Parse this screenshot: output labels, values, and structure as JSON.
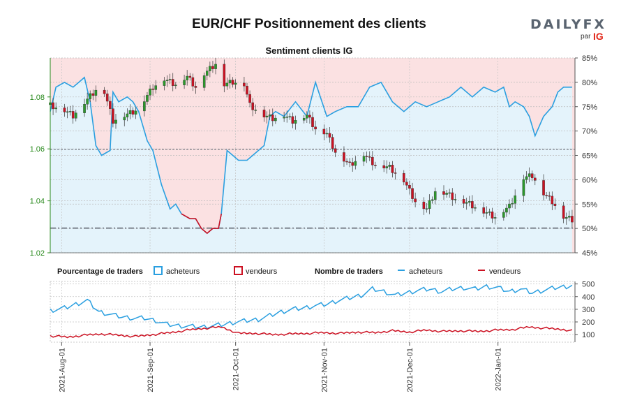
{
  "header": {
    "title": "EUR/CHF Positionnement des clients",
    "subtitle": "Sentiment clients IG",
    "logo_word": "DAILYFX",
    "logo_by": "par",
    "logo_ig": "IG"
  },
  "legend": {
    "pct_title": "Pourcentage de traders",
    "pct_buyers": "acheteurs",
    "pct_sellers": "vendeurs",
    "count_title": "Nombre de traders",
    "count_buyers": "acheteurs",
    "count_sellers": "vendeurs"
  },
  "colors": {
    "buyers": "#2a9fe0",
    "sellers": "#cc1122",
    "buyers_fill": "#e4f3fb",
    "sellers_fill": "#fbe1e2",
    "candle_up": "#2b9a2b",
    "candle_down": "#cc1122",
    "price_axis": "#2a8a1e"
  },
  "chart_data": [
    {
      "type": "candlestick",
      "title": "Sentiment clients IG",
      "price_ticks": [
        "1.02",
        "1.04",
        "1.06",
        "1.08"
      ],
      "price_ylim": [
        1.02,
        1.095
      ],
      "pct_ticks": [
        "45%",
        "50%",
        "55%",
        "60%",
        "65%",
        "70%",
        "75%",
        "80%",
        "85%"
      ],
      "pct_ylim": [
        45,
        85
      ],
      "reference_lines": [
        1.0295,
        1.0598
      ],
      "x_start": "2021-07-28",
      "x_end": "2022-01-28",
      "x_ticks": [
        "2021-Aug-01",
        "2021-Sep-01",
        "2021-Oct-01",
        "2021-Nov-01",
        "2021-Dec-01",
        "2022-Jan-01"
      ],
      "price_path": [
        [
          "2021-07-28",
          1.077
        ],
        [
          "2021-08-02",
          1.075
        ],
        [
          "2021-08-05",
          1.073
        ],
        [
          "2021-08-09",
          1.078
        ],
        [
          "2021-08-13",
          1.083
        ],
        [
          "2021-08-16",
          1.082
        ],
        [
          "2021-08-19",
          1.071
        ],
        [
          "2021-08-23",
          1.073
        ],
        [
          "2021-08-27",
          1.075
        ],
        [
          "2021-08-30",
          1.079
        ],
        [
          "2021-09-02",
          1.084
        ],
        [
          "2021-09-06",
          1.087
        ],
        [
          "2021-09-10",
          1.085
        ],
        [
          "2021-09-14",
          1.088
        ],
        [
          "2021-09-17",
          1.084
        ],
        [
          "2021-09-20",
          1.089
        ],
        [
          "2021-09-23",
          1.092
        ],
        [
          "2021-09-24",
          1.093
        ],
        [
          "2021-09-27",
          1.085
        ],
        [
          "2021-09-30",
          1.086
        ],
        [
          "2021-10-04",
          1.085
        ],
        [
          "2021-10-06",
          1.077
        ],
        [
          "2021-10-11",
          1.073
        ],
        [
          "2021-10-14",
          1.072
        ],
        [
          "2021-10-18",
          1.073
        ],
        [
          "2021-10-21",
          1.071
        ],
        [
          "2021-10-26",
          1.073
        ],
        [
          "2021-10-29",
          1.068
        ],
        [
          "2021-11-02",
          1.066
        ],
        [
          "2021-11-05",
          1.059
        ],
        [
          "2021-11-10",
          1.054
        ],
        [
          "2021-11-15",
          1.058
        ],
        [
          "2021-11-19",
          1.054
        ],
        [
          "2021-11-24",
          1.053
        ],
        [
          "2021-11-29",
          1.048
        ],
        [
          "2021-12-03",
          1.04
        ],
        [
          "2021-12-07",
          1.037
        ],
        [
          "2021-12-10",
          1.044
        ],
        [
          "2021-12-14",
          1.043
        ],
        [
          "2021-12-17",
          1.041
        ],
        [
          "2021-12-22",
          1.039
        ],
        [
          "2021-12-27",
          1.036
        ],
        [
          "2021-12-31",
          1.034
        ],
        [
          "2022-01-05",
          1.038
        ],
        [
          "2022-01-10",
          1.049
        ],
        [
          "2022-01-13",
          1.05
        ],
        [
          "2022-01-17",
          1.043
        ],
        [
          "2022-01-20",
          1.04
        ],
        [
          "2022-01-24",
          1.034
        ],
        [
          "2022-01-27",
          1.033
        ]
      ],
      "buyers_pct_path": [
        [
          "2021-07-28",
          74
        ],
        [
          "2021-07-30",
          79
        ],
        [
          "2021-08-02",
          80
        ],
        [
          "2021-08-05",
          79
        ],
        [
          "2021-08-07",
          80
        ],
        [
          "2021-08-09",
          81
        ],
        [
          "2021-08-11",
          76
        ],
        [
          "2021-08-13",
          67
        ],
        [
          "2021-08-15",
          65
        ],
        [
          "2021-08-18",
          66
        ],
        [
          "2021-08-19",
          78
        ],
        [
          "2021-08-21",
          76
        ],
        [
          "2021-08-24",
          77
        ],
        [
          "2021-08-26",
          76
        ],
        [
          "2021-08-28",
          74
        ],
        [
          "2021-08-31",
          68
        ],
        [
          "2021-09-02",
          66
        ],
        [
          "2021-09-05",
          59
        ],
        [
          "2021-09-08",
          54
        ],
        [
          "2021-09-10",
          55
        ],
        [
          "2021-09-12",
          53
        ],
        [
          "2021-09-15",
          52
        ],
        [
          "2021-09-17",
          52
        ],
        [
          "2021-09-19",
          50
        ],
        [
          "2021-09-21",
          49
        ],
        [
          "2021-09-23",
          50
        ],
        [
          "2021-09-25",
          50
        ],
        [
          "2021-09-26",
          53
        ],
        [
          "2021-09-28",
          66
        ],
        [
          "2021-09-30",
          65
        ],
        [
          "2021-10-02",
          64
        ],
        [
          "2021-10-05",
          64
        ],
        [
          "2021-10-07",
          65
        ],
        [
          "2021-10-09",
          66
        ],
        [
          "2021-10-11",
          67
        ],
        [
          "2021-10-13",
          73
        ],
        [
          "2021-10-15",
          74
        ],
        [
          "2021-10-18",
          73
        ],
        [
          "2021-10-22",
          76
        ],
        [
          "2021-10-26",
          73
        ],
        [
          "2021-10-29",
          80
        ],
        [
          "2021-11-02",
          73
        ],
        [
          "2021-11-05",
          74
        ],
        [
          "2021-11-09",
          75
        ],
        [
          "2021-11-13",
          75
        ],
        [
          "2021-11-17",
          79
        ],
        [
          "2021-11-21",
          80
        ],
        [
          "2021-11-25",
          76
        ],
        [
          "2021-11-29",
          74
        ],
        [
          "2021-12-03",
          76
        ],
        [
          "2021-12-07",
          75
        ],
        [
          "2021-12-11",
          76
        ],
        [
          "2021-12-15",
          77
        ],
        [
          "2021-12-19",
          79
        ],
        [
          "2021-12-23",
          77
        ],
        [
          "2021-12-27",
          79
        ],
        [
          "2021-12-31",
          78
        ],
        [
          "2022-01-03",
          79
        ],
        [
          "2022-01-05",
          75
        ],
        [
          "2022-01-07",
          76
        ],
        [
          "2022-01-10",
          75
        ],
        [
          "2022-01-12",
          73
        ],
        [
          "2022-01-14",
          69
        ],
        [
          "2022-01-17",
          73
        ],
        [
          "2022-01-20",
          75
        ],
        [
          "2022-01-22",
          78
        ],
        [
          "2022-01-24",
          79
        ],
        [
          "2022-01-27",
          79
        ]
      ]
    },
    {
      "type": "line",
      "y_ticks": [
        "100",
        "200",
        "300",
        "400",
        "500"
      ],
      "y_ticks_values": [
        100,
        200,
        300,
        400,
        500
      ],
      "ylim": [
        40,
        520
      ],
      "series": [
        {
          "name": "acheteurs",
          "path": [
            [
              "2021-07-28",
              290
            ],
            [
              "2021-08-02",
              310
            ],
            [
              "2021-08-06",
              340
            ],
            [
              "2021-08-10",
              370
            ],
            [
              "2021-08-14",
              280
            ],
            [
              "2021-08-18",
              260
            ],
            [
              "2021-08-22",
              240
            ],
            [
              "2021-08-26",
              230
            ],
            [
              "2021-08-30",
              230
            ],
            [
              "2021-09-03",
              210
            ],
            [
              "2021-09-07",
              180
            ],
            [
              "2021-09-11",
              170
            ],
            [
              "2021-09-15",
              165
            ],
            [
              "2021-09-19",
              160
            ],
            [
              "2021-09-23",
              170
            ],
            [
              "2021-09-27",
              180
            ],
            [
              "2021-10-01",
              200
            ],
            [
              "2021-10-05",
              210
            ],
            [
              "2021-10-09",
              220
            ],
            [
              "2021-10-13",
              250
            ],
            [
              "2021-10-17",
              280
            ],
            [
              "2021-10-21",
              300
            ],
            [
              "2021-10-25",
              310
            ],
            [
              "2021-10-29",
              330
            ],
            [
              "2021-11-02",
              340
            ],
            [
              "2021-11-06",
              370
            ],
            [
              "2021-11-10",
              390
            ],
            [
              "2021-11-14",
              410
            ],
            [
              "2021-11-18",
              460
            ],
            [
              "2021-11-22",
              440
            ],
            [
              "2021-11-26",
              410
            ],
            [
              "2021-11-30",
              430
            ],
            [
              "2021-12-04",
              450
            ],
            [
              "2021-12-08",
              460
            ],
            [
              "2021-12-12",
              440
            ],
            [
              "2021-12-16",
              460
            ],
            [
              "2021-12-20",
              470
            ],
            [
              "2021-12-24",
              460
            ],
            [
              "2021-12-28",
              480
            ],
            [
              "2022-01-01",
              470
            ],
            [
              "2022-01-05",
              440
            ],
            [
              "2022-01-09",
              460
            ],
            [
              "2022-01-13",
              430
            ],
            [
              "2022-01-17",
              450
            ],
            [
              "2022-01-21",
              470
            ],
            [
              "2022-01-25",
              480
            ],
            [
              "2022-01-27",
              490
            ]
          ]
        },
        {
          "name": "vendeurs",
          "path": [
            [
              "2021-07-28",
              90
            ],
            [
              "2021-08-03",
              80
            ],
            [
              "2021-08-09",
              95
            ],
            [
              "2021-08-15",
              105
            ],
            [
              "2021-08-21",
              95
            ],
            [
              "2021-08-27",
              85
            ],
            [
              "2021-09-02",
              100
            ],
            [
              "2021-09-08",
              115
            ],
            [
              "2021-09-14",
              135
            ],
            [
              "2021-09-20",
              150
            ],
            [
              "2021-09-26",
              160
            ],
            [
              "2021-10-02",
              110
            ],
            [
              "2021-10-08",
              110
            ],
            [
              "2021-10-14",
              100
            ],
            [
              "2021-10-20",
              105
            ],
            [
              "2021-10-26",
              110
            ],
            [
              "2021-11-01",
              115
            ],
            [
              "2021-11-07",
              110
            ],
            [
              "2021-11-13",
              120
            ],
            [
              "2021-11-19",
              115
            ],
            [
              "2021-11-25",
              130
            ],
            [
              "2021-12-01",
              120
            ],
            [
              "2021-12-07",
              135
            ],
            [
              "2021-12-13",
              125
            ],
            [
              "2021-12-19",
              130
            ],
            [
              "2021-12-25",
              125
            ],
            [
              "2021-12-31",
              135
            ],
            [
              "2022-01-06",
              140
            ],
            [
              "2022-01-12",
              160
            ],
            [
              "2022-01-18",
              150
            ],
            [
              "2022-01-24",
              140
            ],
            [
              "2022-01-27",
              130
            ]
          ]
        }
      ]
    }
  ]
}
